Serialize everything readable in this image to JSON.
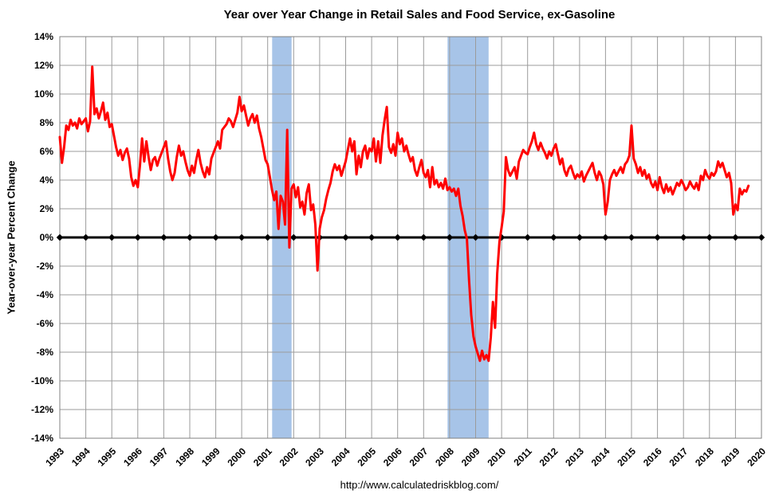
{
  "page": {
    "title": "Year over Year Change in Retail Sales and Food Service, ex-Gasoline",
    "ylabel": "Year-over-year Percent Change",
    "footer": "http://www.calculatedriskblog.com/"
  },
  "chart_data": {
    "type": "line",
    "title": "Year over Year Change in Retail Sales and Food Service, ex-Gasoline",
    "xlabel": "",
    "ylabel": "Year-over-year Percent Change",
    "footer": "http://www.calculatedriskblog.com/",
    "x_start": 1993,
    "x_end": 2020,
    "ylim": [
      -14,
      14
    ],
    "y_tick_step": 2,
    "grid": true,
    "legend": "none",
    "y_tick_labels": [
      "14%",
      "12%",
      "10%",
      "8%",
      "6%",
      "4%",
      "2%",
      "0%",
      "-2%",
      "-4%",
      "-6%",
      "-8%",
      "-10%",
      "-12%",
      "-14%"
    ],
    "x_tick_labels": [
      "1993",
      "1994",
      "1995",
      "1996",
      "1997",
      "1998",
      "1999",
      "2000",
      "2001",
      "2002",
      "2003",
      "2004",
      "2005",
      "2006",
      "2007",
      "2008",
      "2009",
      "2010",
      "2011",
      "2012",
      "2013",
      "2014",
      "2015",
      "2016",
      "2017",
      "2018",
      "2019",
      "2020"
    ],
    "colors": {
      "line": "#FF0000",
      "zero_line": "#000000",
      "grid": "#9B9B9B",
      "border": "#808080",
      "recession_band": "#A7C4E8",
      "background": "#FFFFFF"
    },
    "recession_bands": [
      {
        "from": 2001.17,
        "to": 2001.92
      },
      {
        "from": 2007.92,
        "to": 2009.5
      }
    ],
    "series": [
      {
        "name": "Retail Sales and Food Service ex-Gasoline, YoY % change",
        "frequency": "monthly",
        "start": "1993-01",
        "values": [
          7.0,
          5.2,
          6.3,
          7.8,
          7.5,
          8.2,
          7.8,
          8.0,
          7.6,
          8.3,
          7.9,
          8.1,
          8.3,
          7.4,
          8.1,
          11.9,
          8.6,
          9.0,
          8.3,
          8.8,
          9.4,
          8.2,
          8.7,
          7.7,
          7.9,
          7.1,
          6.3,
          5.7,
          6.1,
          5.4,
          5.9,
          6.2,
          5.5,
          4.2,
          3.6,
          4.0,
          3.5,
          5.0,
          6.9,
          5.3,
          6.7,
          5.6,
          4.7,
          5.4,
          5.6,
          5.0,
          5.5,
          5.9,
          6.3,
          6.7,
          5.5,
          4.6,
          4.0,
          4.5,
          5.6,
          6.4,
          5.7,
          6.0,
          5.3,
          4.7,
          4.3,
          5.0,
          4.5,
          5.4,
          6.1,
          5.2,
          4.6,
          4.2,
          4.9,
          4.4,
          5.5,
          5.9,
          6.3,
          6.7,
          6.2,
          7.5,
          7.7,
          7.9,
          8.3,
          8.1,
          7.7,
          8.2,
          8.7,
          9.8,
          8.8,
          9.2,
          8.5,
          7.8,
          8.3,
          8.6,
          8.0,
          8.5,
          7.6,
          7.0,
          6.2,
          5.4,
          5.1,
          4.2,
          3.3,
          2.6,
          3.2,
          0.6,
          2.9,
          2.5,
          0.9,
          7.5,
          -0.7,
          3.4,
          3.7,
          2.8,
          3.5,
          2.1,
          2.5,
          1.6,
          3.1,
          3.7,
          1.9,
          2.3,
          0.9,
          -2.3,
          0.6,
          1.4,
          1.9,
          2.7,
          3.3,
          3.8,
          4.6,
          5.1,
          4.7,
          5.0,
          4.3,
          4.8,
          5.3,
          6.1,
          6.9,
          6.0,
          6.7,
          4.4,
          5.7,
          4.9,
          6.0,
          6.4,
          5.5,
          6.2,
          6.0,
          6.9,
          5.3,
          6.7,
          5.2,
          7.1,
          8.2,
          9.1,
          6.3,
          5.9,
          6.5,
          5.7,
          7.3,
          6.5,
          6.9,
          6.0,
          6.4,
          5.8,
          5.3,
          5.6,
          4.7,
          4.3,
          4.9,
          5.4,
          4.5,
          4.2,
          4.7,
          3.5,
          4.9,
          3.7,
          4.0,
          3.5,
          3.8,
          3.4,
          4.1,
          3.3,
          3.5,
          3.2,
          3.4,
          2.9,
          3.4,
          2.2,
          1.5,
          0.5,
          -0.1,
          -3.0,
          -5.4,
          -6.9,
          -7.6,
          -8.1,
          -8.6,
          -7.9,
          -8.5,
          -8.2,
          -8.6,
          -7.0,
          -4.5,
          -6.3,
          -2.5,
          -0.3,
          0.7,
          1.8,
          5.6,
          4.7,
          4.3,
          4.6,
          4.9,
          4.1,
          5.3,
          5.7,
          6.1,
          5.9,
          5.8,
          6.3,
          6.7,
          7.3,
          6.5,
          6.1,
          6.6,
          6.2,
          5.9,
          5.5,
          6.0,
          5.7,
          6.2,
          6.5,
          5.8,
          5.1,
          5.5,
          4.7,
          4.3,
          4.8,
          5.0,
          4.5,
          4.1,
          4.4,
          4.2,
          4.6,
          3.9,
          4.3,
          4.6,
          4.9,
          5.2,
          4.5,
          4.0,
          4.6,
          4.3,
          3.7,
          1.6,
          2.5,
          4.0,
          4.4,
          4.7,
          4.3,
          4.6,
          4.9,
          4.5,
          5.1,
          5.3,
          5.7,
          7.8,
          5.5,
          5.1,
          4.5,
          4.9,
          4.3,
          4.7,
          4.1,
          4.4,
          3.8,
          3.5,
          3.9,
          3.3,
          4.2,
          3.5,
          3.1,
          3.7,
          3.2,
          3.5,
          3.0,
          3.4,
          3.8,
          3.6,
          4.0,
          3.7,
          3.3,
          3.5,
          3.9,
          3.6,
          3.4,
          3.8,
          3.3,
          4.3,
          4.0,
          4.7,
          4.3,
          4.1,
          4.5,
          4.3,
          4.6,
          5.3,
          4.9,
          5.2,
          4.7,
          4.2,
          4.5,
          3.8,
          1.6,
          2.3,
          1.9,
          3.4,
          3.0,
          3.3,
          3.2,
          3.6
        ]
      }
    ]
  }
}
